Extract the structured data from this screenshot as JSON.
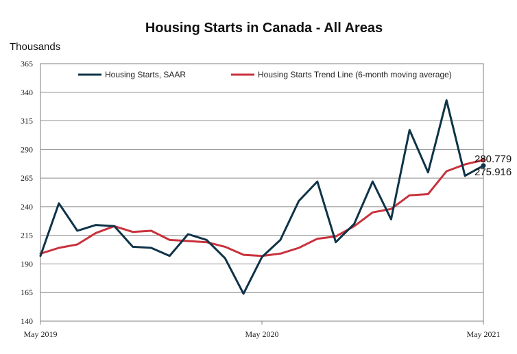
{
  "chart_data": {
    "type": "line",
    "title": "Housing Starts in Canada - All Areas",
    "ylabel": "Thousands",
    "xlabel": "",
    "ylim": [
      140,
      365
    ],
    "yticks": [
      140,
      165,
      190,
      215,
      240,
      265,
      290,
      315,
      340,
      365
    ],
    "x": [
      "May 2019",
      "Jun 2019",
      "Jul 2019",
      "Aug 2019",
      "Sep 2019",
      "Oct 2019",
      "Nov 2019",
      "Dec 2019",
      "Jan 2020",
      "Feb 2020",
      "Mar 2020",
      "Apr 2020",
      "May 2020",
      "Jun 2020",
      "Jul 2020",
      "Aug 2020",
      "Sep 2020",
      "Oct 2020",
      "Nov 2020",
      "Dec 2020",
      "Jan 2021",
      "Feb 2021",
      "Mar 2021",
      "Apr 2021",
      "May 2021"
    ],
    "xtick_labels": [
      "May 2019",
      "May 2020",
      "May 2021"
    ],
    "xtick_indices": [
      0,
      12,
      24
    ],
    "grid": true,
    "legend": "top",
    "series": [
      {
        "name": "Housing Starts, SAAR",
        "color": "#0f3348",
        "values": [
          197,
          243,
          219,
          224,
          223,
          205,
          204,
          197,
          216,
          211,
          195,
          164,
          196,
          211,
          245,
          262,
          209,
          225,
          262,
          229,
          307,
          270,
          333,
          267,
          275.916
        ]
      },
      {
        "name": "Housing Starts Trend Line (6-month moving average)",
        "color": "#c8323c",
        "values": [
          199,
          204,
          207,
          217,
          223,
          218,
          219,
          211,
          210,
          209,
          205,
          198,
          197,
          199,
          204,
          212,
          214,
          223,
          235,
          238,
          250,
          251,
          271,
          277,
          280.779
        ]
      }
    ],
    "end_labels": [
      "280.779",
      "275.916"
    ]
  }
}
